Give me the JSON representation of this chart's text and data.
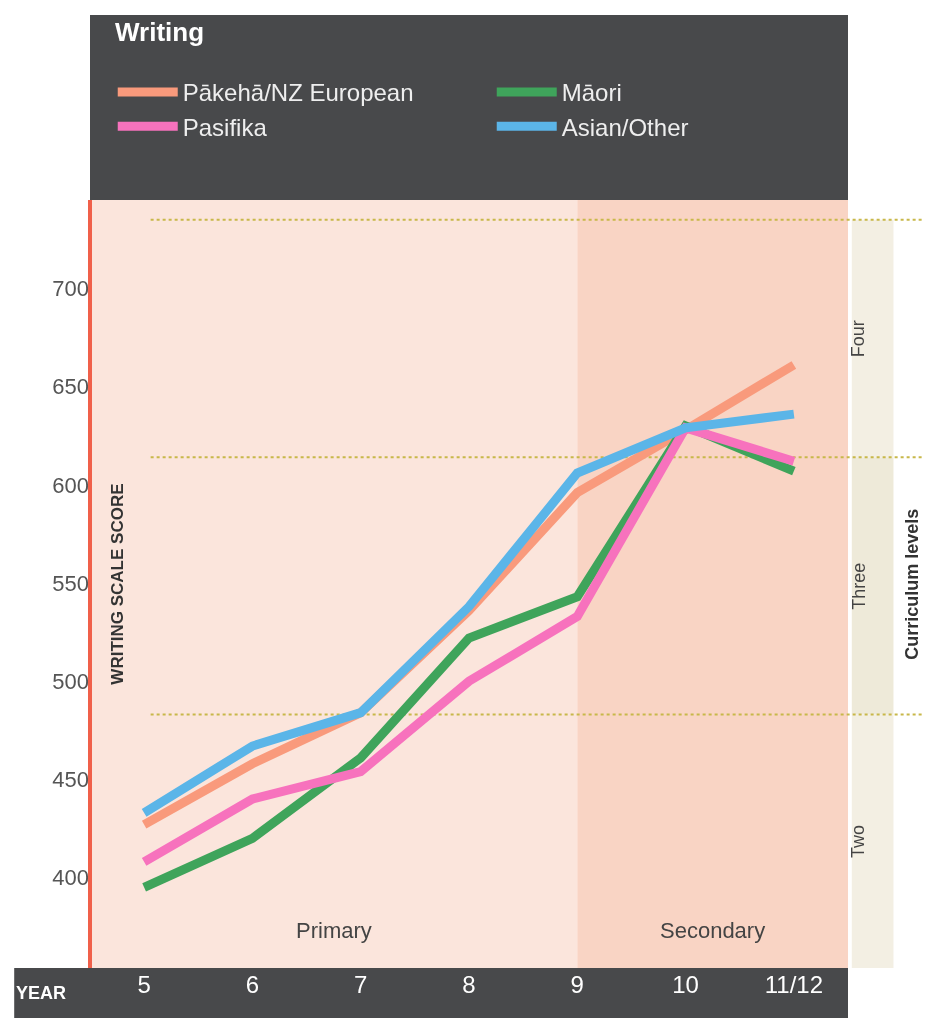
{
  "chart_data": {
    "type": "line",
    "title": "Writing",
    "xlabel": "YEAR",
    "ylabel": "WRITING SCALE SCORE",
    "y2label": "Curriculum levels",
    "categories": [
      "5",
      "6",
      "7",
      "8",
      "9",
      "10",
      "11/12"
    ],
    "series": [
      {
        "name": "Pākehā/NZ European",
        "color": "#f99a7c",
        "values": [
          427,
          458,
          484,
          536,
          596,
          628,
          661
        ]
      },
      {
        "name": "Māori",
        "color": "#3fa45b",
        "values": [
          395,
          420,
          461,
          522,
          543,
          630,
          607
        ]
      },
      {
        "name": "Pasifika",
        "color": "#f772bd",
        "values": [
          408,
          440,
          454,
          500,
          533,
          629,
          612
        ]
      },
      {
        "name": "Asian/Other",
        "color": "#5bb5e8",
        "values": [
          433,
          467,
          484,
          538,
          606,
          629,
          636
        ]
      }
    ],
    "ylim": [
      354,
      745
    ],
    "yticks": [
      400,
      450,
      500,
      550,
      600,
      650,
      700
    ],
    "bands": [
      {
        "axis": "x",
        "from": "5",
        "to": "9",
        "label": "Primary",
        "color": "#fbe5dc"
      },
      {
        "axis": "x",
        "from": "9",
        "to": "11/12",
        "label": "Secondary",
        "color": "#f9d4c4"
      },
      {
        "axis": "y",
        "from": 354,
        "to": 483,
        "label": "Two",
        "color": "#f3efe3"
      },
      {
        "axis": "y",
        "from": 483,
        "to": 614,
        "label": "Three",
        "color": "#eeead9"
      },
      {
        "axis": "y",
        "from": 614,
        "to": 735,
        "label": "Four",
        "color": "#f3efe3"
      }
    ],
    "ref_lines": [
      {
        "axis": "y",
        "value": 483,
        "color": "#c8b84a",
        "line_style": "dotted"
      },
      {
        "axis": "y",
        "value": 614,
        "color": "#c8b84a",
        "line_style": "dotted"
      },
      {
        "axis": "y",
        "value": 735,
        "color": "#c8b84a",
        "line_style": "dotted"
      }
    ],
    "grid": false,
    "legend": "top",
    "marker": "none"
  }
}
